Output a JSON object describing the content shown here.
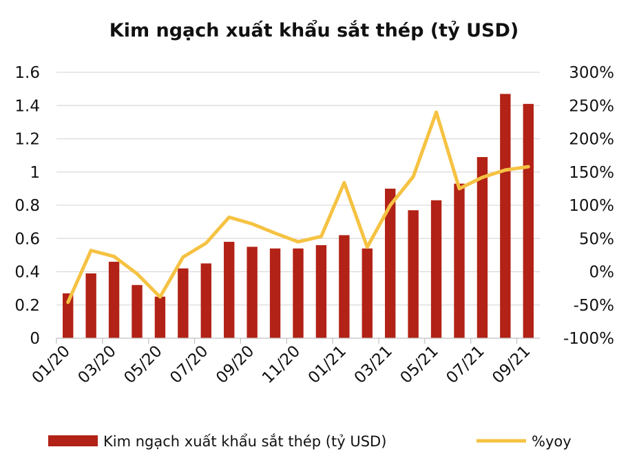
{
  "chart_data": {
    "type": "bar+line",
    "title": "Kim ngạch xuất khẩu sắt thép (tỷ USD)",
    "x_tick_labels": [
      "01/20",
      "03/20",
      "05/20",
      "07/20",
      "09/20",
      "11/20",
      "01/21",
      "03/21",
      "05/21",
      "07/21",
      "09/21"
    ],
    "months": [
      "01/20",
      "02/20",
      "03/20",
      "04/20",
      "05/20",
      "06/20",
      "07/20",
      "08/20",
      "09/20",
      "10/20",
      "11/20",
      "12/20",
      "01/21",
      "02/21",
      "03/21",
      "04/21",
      "05/21",
      "06/21",
      "07/21",
      "08/21",
      "09/21"
    ],
    "left_axis": {
      "ylim": [
        0,
        1.6
      ],
      "ticks": [
        0,
        0.2,
        0.4,
        0.6,
        0.8,
        1,
        1.2,
        1.4,
        1.6
      ],
      "tick_labels": [
        "0",
        "0.2",
        "0.4",
        "0.6",
        "0.8",
        "1",
        "1.2",
        "1.4",
        "1.6"
      ]
    },
    "right_axis": {
      "ylim": [
        -100,
        300
      ],
      "ticks": [
        -100,
        -50,
        0,
        50,
        100,
        150,
        200,
        250,
        300
      ],
      "tick_labels": [
        "-100%",
        "-50%",
        "0%",
        "50%",
        "100%",
        "150%",
        "200%",
        "250%",
        "300%"
      ]
    },
    "series": [
      {
        "name": "Kim ngạch xuất khẩu sắt thép (tỷ USD)",
        "type": "bar",
        "axis": "left",
        "color": "#b22216",
        "values": [
          0.27,
          0.39,
          0.46,
          0.32,
          0.25,
          0.42,
          0.45,
          0.58,
          0.55,
          0.54,
          0.54,
          0.56,
          0.62,
          0.54,
          0.9,
          0.77,
          0.83,
          0.93,
          1.09,
          1.47,
          1.41
        ]
      },
      {
        "name": "%yoy",
        "type": "line",
        "axis": "right",
        "color": "#f5c242",
        "values": [
          -46,
          32,
          23,
          -3,
          -38,
          22,
          43,
          82,
          72,
          58,
          45,
          53,
          134,
          37,
          100,
          143,
          240,
          125,
          142,
          153,
          158
        ]
      }
    ],
    "legend": {
      "position": "bottom"
    },
    "grid": true
  }
}
